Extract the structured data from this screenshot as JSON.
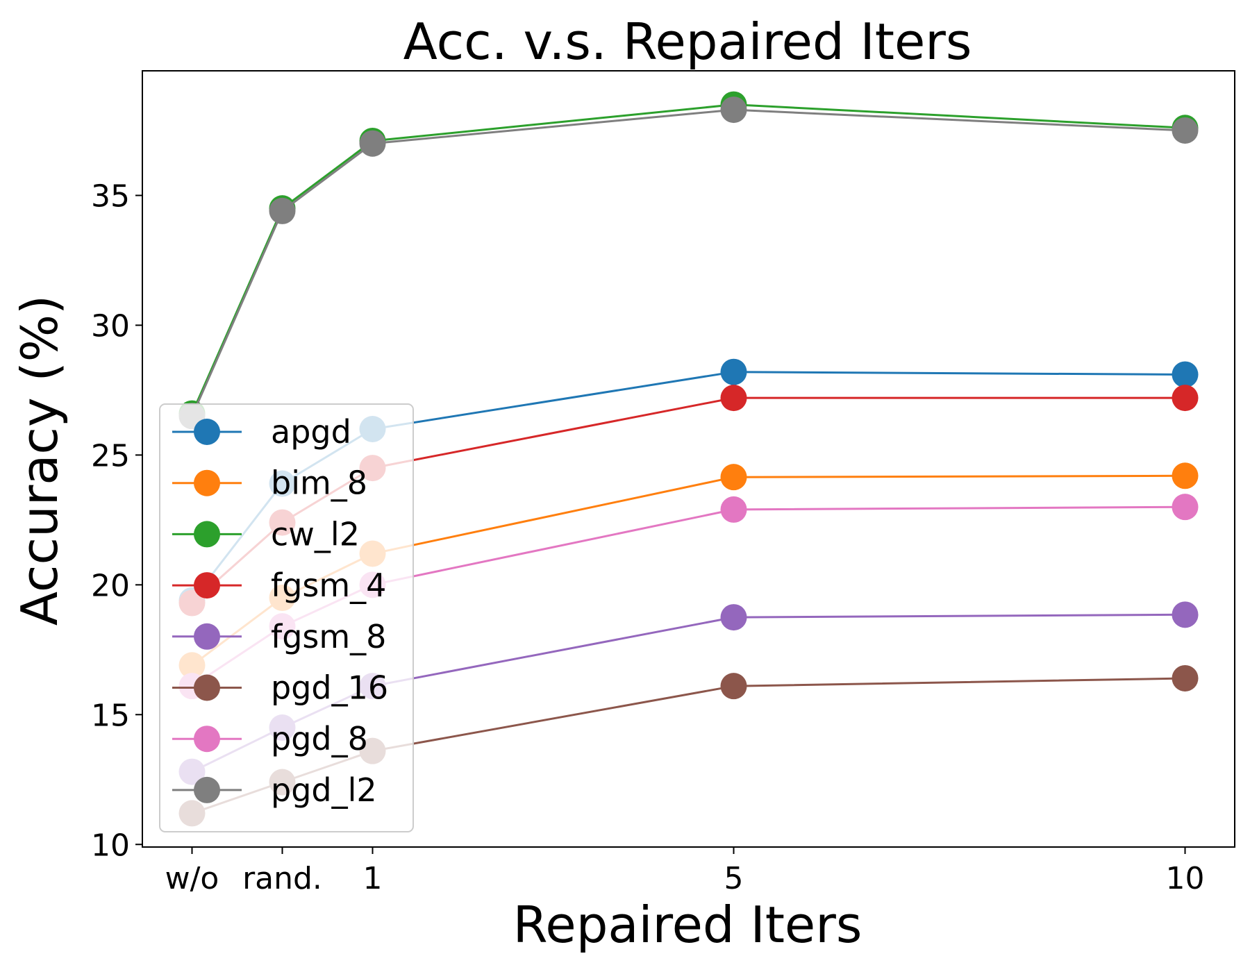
{
  "chart_data": {
    "type": "line",
    "title": "Acc. v.s. Repaired Iters",
    "xlabel": "Repaired Iters",
    "ylabel": "Accuracy (%)",
    "categories": [
      "w/o",
      "rand.",
      "1",
      "5",
      "10"
    ],
    "x": [
      -1,
      0,
      1,
      5,
      10
    ],
    "xlim": [
      -1.55,
      10.55
    ],
    "ylim": [
      9.9,
      39.8
    ],
    "yticks": [
      10,
      15,
      20,
      25,
      30,
      35
    ],
    "legend_position": "lower-left",
    "grid": false,
    "series": [
      {
        "name": "apgd",
        "color": "#1f77b4",
        "values": [
          19.4,
          23.9,
          26.0,
          28.2,
          28.1
        ]
      },
      {
        "name": "bim_8",
        "color": "#ff7f0e",
        "values": [
          16.9,
          19.5,
          21.2,
          24.15,
          24.2
        ]
      },
      {
        "name": "cw_l2",
        "color": "#2ca02c",
        "values": [
          26.6,
          34.5,
          37.1,
          38.5,
          37.6
        ]
      },
      {
        "name": "fgsm_4",
        "color": "#d62728",
        "values": [
          19.3,
          22.4,
          24.5,
          27.2,
          27.2
        ]
      },
      {
        "name": "fgsm_8",
        "color": "#9467bd",
        "values": [
          12.8,
          14.5,
          16.1,
          18.75,
          18.85
        ]
      },
      {
        "name": "pgd_16",
        "color": "#8c564b",
        "values": [
          11.2,
          12.4,
          13.6,
          16.1,
          16.4
        ]
      },
      {
        "name": "pgd_8",
        "color": "#e377c2",
        "values": [
          16.1,
          18.4,
          20.0,
          22.9,
          23.0
        ]
      },
      {
        "name": "pgd_l2",
        "color": "#7f7f7f",
        "values": [
          26.5,
          34.4,
          37.0,
          38.3,
          37.5
        ]
      }
    ]
  }
}
